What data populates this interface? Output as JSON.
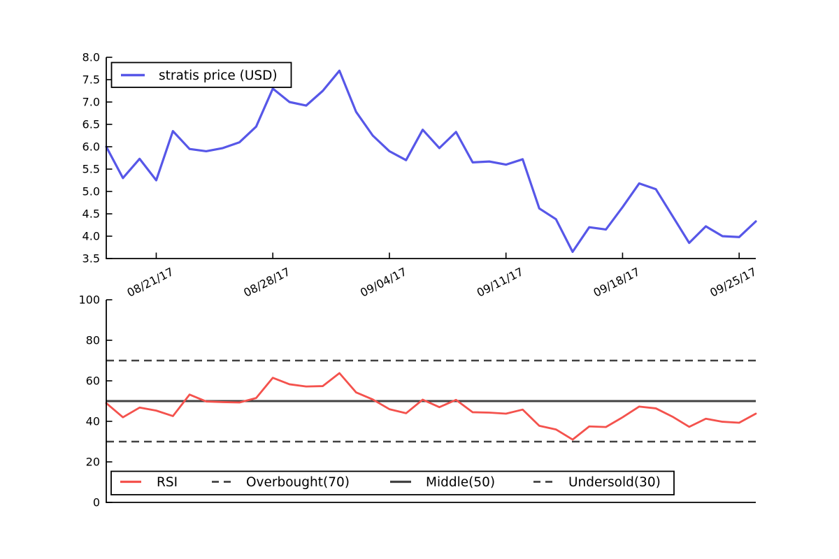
{
  "figure": {
    "background": "#ffffff",
    "axis_color": "#000000",
    "text_color": "#000000"
  },
  "chart_data": [
    {
      "type": "line",
      "panel": "price",
      "title": "",
      "xlabel": "",
      "ylabel": "",
      "grid": false,
      "x_dates": [
        "08/18/17",
        "08/19/17",
        "08/20/17",
        "08/21/17",
        "08/22/17",
        "08/23/17",
        "08/24/17",
        "08/25/17",
        "08/26/17",
        "08/27/17",
        "08/28/17",
        "08/29/17",
        "08/30/17",
        "08/31/17",
        "09/01/17",
        "09/02/17",
        "09/03/17",
        "09/04/17",
        "09/05/17",
        "09/06/17",
        "09/07/17",
        "09/08/17",
        "09/09/17",
        "09/10/17",
        "09/11/17",
        "09/12/17",
        "09/13/17",
        "09/14/17",
        "09/15/17",
        "09/16/17",
        "09/17/17",
        "09/18/17",
        "09/19/17",
        "09/20/17",
        "09/21/17",
        "09/22/17",
        "09/23/17",
        "09/24/17",
        "09/25/17",
        "09/26/17"
      ],
      "series": [
        {
          "name": "stratis price (USD)",
          "color": "#5757e8",
          "line_style": "solid",
          "values": [
            6.0,
            5.3,
            5.73,
            5.25,
            6.35,
            5.95,
            5.9,
            5.97,
            6.1,
            6.45,
            7.3,
            7.0,
            6.92,
            7.25,
            7.7,
            6.78,
            6.25,
            5.9,
            5.7,
            6.38,
            5.97,
            6.33,
            5.65,
            5.67,
            5.6,
            5.72,
            4.62,
            4.38,
            3.65,
            4.2,
            4.15,
            4.65,
            5.18,
            5.05,
            4.45,
            3.85,
            4.22,
            4.0,
            3.98,
            4.33
          ]
        }
      ],
      "ylim": [
        3.5,
        8.0
      ],
      "ytick_labels": [
        "3.5",
        "4.0",
        "4.5",
        "5.0",
        "5.5",
        "6.0",
        "6.5",
        "7.0",
        "7.5",
        "8.0"
      ],
      "ytick_values": [
        3.5,
        4.0,
        4.5,
        5.0,
        5.5,
        6.0,
        6.5,
        7.0,
        7.5,
        8.0
      ],
      "xticks": [
        {
          "index": 3,
          "label": "08/21/17"
        },
        {
          "index": 10,
          "label": "08/28/17"
        },
        {
          "index": 17,
          "label": "09/04/17"
        },
        {
          "index": 24,
          "label": "09/11/17"
        },
        {
          "index": 31,
          "label": "09/18/17"
        },
        {
          "index": 38,
          "label": "09/25/17"
        }
      ],
      "legend": {
        "position": "upper-left",
        "entries": [
          {
            "label": "stratis price (USD)",
            "style": "solid",
            "color": "#5757e8"
          }
        ]
      }
    },
    {
      "type": "line",
      "panel": "rsi",
      "title": "",
      "xlabel": "",
      "ylabel": "",
      "grid": false,
      "series": [
        {
          "name": "RSI",
          "color": "#f4524d",
          "line_style": "solid",
          "values": [
            49.0,
            42.0,
            46.8,
            45.3,
            42.6,
            53.2,
            49.8,
            49.5,
            49.3,
            51.5,
            61.5,
            58.3,
            57.2,
            57.4,
            63.8,
            54.3,
            50.8,
            46.0,
            44.0,
            50.7,
            47.0,
            50.6,
            44.5,
            44.3,
            43.8,
            45.8,
            37.8,
            36.0,
            31.0,
            37.5,
            37.2,
            42.0,
            47.3,
            46.4,
            42.3,
            37.3,
            41.3,
            39.8,
            39.3,
            43.8
          ]
        }
      ],
      "reference_lines": [
        {
          "label": "Overbought(70)",
          "value": 70,
          "style": "dashed",
          "color": "#424242"
        },
        {
          "label": "Middle(50)",
          "value": 50,
          "style": "solid",
          "color": "#424242"
        },
        {
          "label": "Undersold(30)",
          "value": 30,
          "style": "dashed",
          "color": "#424242"
        }
      ],
      "ylim": [
        0,
        100
      ],
      "ytick_labels": [
        "0",
        "20",
        "40",
        "60",
        "80",
        "100"
      ],
      "ytick_values": [
        0,
        20,
        40,
        60,
        80,
        100
      ],
      "legend": {
        "position": "lower-left",
        "entries": [
          {
            "label": "RSI",
            "style": "solid",
            "color": "#f4524d"
          },
          {
            "label": "Overbought(70)",
            "style": "dashed",
            "color": "#424242"
          },
          {
            "label": "Middle(50)",
            "style": "solid",
            "color": "#424242"
          },
          {
            "label": "Undersold(30)",
            "style": "dashed",
            "color": "#424242"
          }
        ]
      }
    }
  ]
}
